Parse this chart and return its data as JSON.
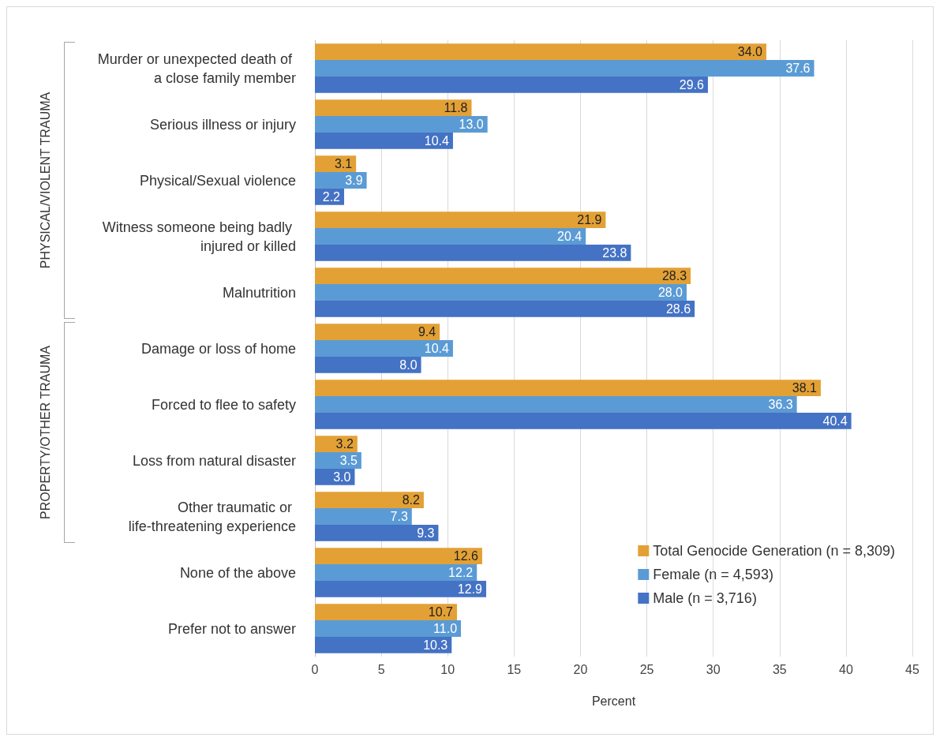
{
  "chart_data": {
    "type": "bar",
    "orientation": "horizontal",
    "categories": [
      "Murder or unexpected death of a close family member",
      "Serious illness or injury",
      "Physical/Sexual violence",
      "Witness someone being badly injured or killed",
      "Malnutrition",
      "Damage or loss of home",
      "Forced to flee to safety",
      "Loss from natural disaster",
      "Other traumatic or life-threatening experience",
      "None of the above",
      "Prefer not to answer"
    ],
    "series": [
      {
        "name": "Total Genocide Generation (n = 8,309)",
        "color": "#e3a135",
        "values": [
          34.0,
          11.8,
          3.1,
          21.9,
          28.3,
          9.4,
          38.1,
          3.2,
          8.2,
          12.6,
          10.7
        ],
        "value_labels": [
          "34.0",
          "11.8",
          "3.1",
          "21.9",
          "28.3",
          "9.4",
          "38.1",
          "3.2",
          "8.2",
          "12.6",
          "10.7"
        ]
      },
      {
        "name": "Female (n = 4,593)",
        "color": "#5b9bd5",
        "values": [
          37.6,
          13.0,
          3.9,
          20.4,
          28.0,
          10.4,
          36.3,
          3.5,
          7.3,
          12.2,
          11.0
        ],
        "value_labels": [
          "37.6",
          "13.0",
          "3.9",
          "20.4",
          "28.0",
          "10.4",
          "36.3",
          "3.5",
          "7.3",
          "12.2",
          "11.0"
        ]
      },
      {
        "name": "Male (n = 3,716)",
        "color": "#4472c4",
        "values": [
          29.6,
          10.4,
          2.2,
          23.8,
          28.6,
          8.0,
          40.4,
          3.0,
          9.3,
          12.9,
          10.3
        ],
        "value_labels": [
          "29.6",
          "10.4",
          "2.2",
          "23.8",
          "28.6",
          "8.0",
          "40.4",
          "3.0",
          "9.3",
          "12.9",
          "10.3"
        ]
      }
    ],
    "xlabel": "Percent",
    "xlim": [
      0,
      45
    ],
    "xticks": [
      0,
      5,
      10,
      15,
      20,
      25,
      30,
      35,
      40,
      45
    ],
    "grid": "x",
    "legend": "bottom right",
    "annotations": [
      "PHYSICAL/VIOLENT TRAUMA",
      "PROPERTY/OTHER TRAUMA"
    ]
  }
}
